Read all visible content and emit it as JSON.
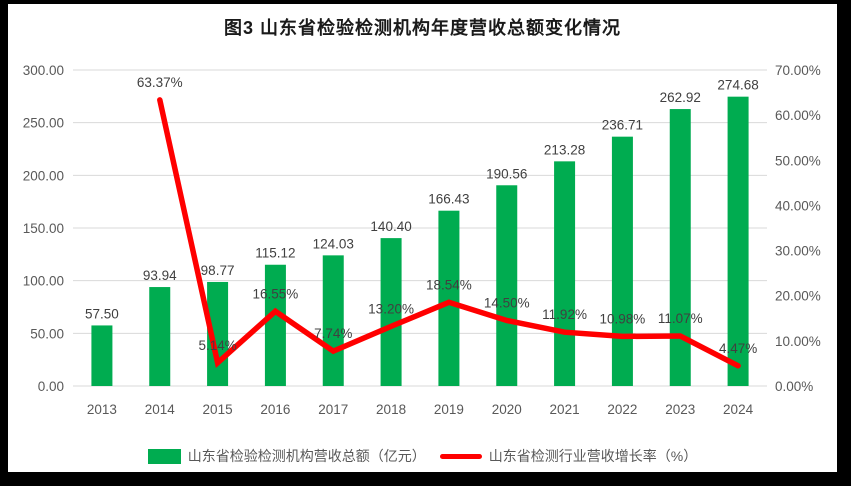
{
  "chart_data": {
    "type": "combo",
    "title": "图3  山东省检验检测机构年度营收总额变化情况",
    "categories": [
      "2013",
      "2014",
      "2015",
      "2016",
      "2017",
      "2018",
      "2019",
      "2020",
      "2021",
      "2022",
      "2023",
      "2024"
    ],
    "series": [
      {
        "name": "山东省检验检测机构营收总额（亿元）",
        "type": "bar",
        "axis": "left",
        "color": "#00AC50",
        "values": [
          57.5,
          93.94,
          98.77,
          115.12,
          124.03,
          140.4,
          166.43,
          190.56,
          213.28,
          236.71,
          262.92,
          274.68
        ]
      },
      {
        "name": "山东省检测行业营收增长率（%）",
        "type": "line",
        "axis": "right",
        "color": "#FF0000",
        "values": [
          null,
          63.37,
          5.14,
          16.55,
          7.74,
          13.2,
          18.54,
          14.5,
          11.92,
          10.98,
          11.07,
          4.47
        ]
      }
    ],
    "left_axis": {
      "min": 0,
      "max": 300,
      "tick_step": 50,
      "tick_labels": [
        "0.00",
        "50.00",
        "100.00",
        "150.00",
        "200.00",
        "250.00",
        "300.00"
      ]
    },
    "right_axis": {
      "min": 0,
      "max": 70,
      "tick_step": 10,
      "tick_labels": [
        "0.00%",
        "10.00%",
        "20.00%",
        "30.00%",
        "40.00%",
        "50.00%",
        "60.00%",
        "70.00%"
      ]
    },
    "grid": true,
    "data_labels": true,
    "legend_position": "bottom",
    "colors": {
      "bar": "#00AC50",
      "line": "#FF0000",
      "gridline": "#D9D9D9",
      "axis_text": "#595959",
      "data_label_text": "#404040",
      "background": "#FFFFFF",
      "frame": "#000000"
    }
  }
}
